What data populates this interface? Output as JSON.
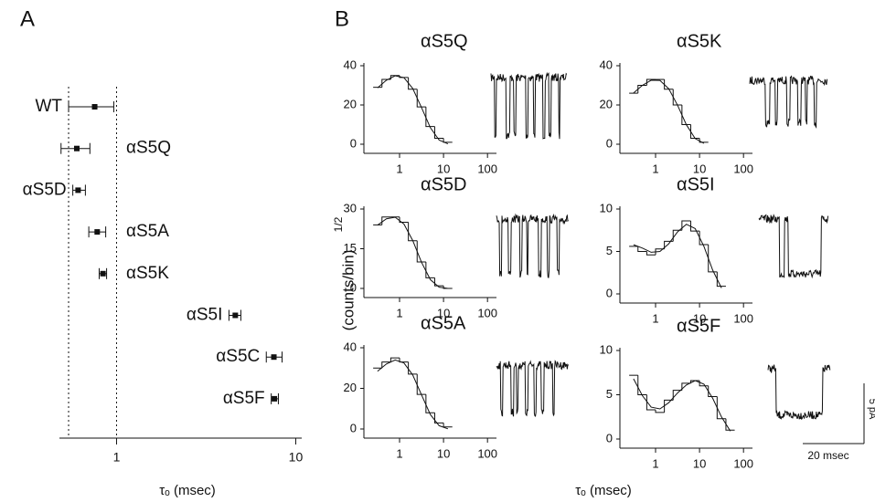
{
  "figure": {
    "panel_b_label": "B",
    "panel_b_x_label": "τₒ (msec)",
    "panel_b_y_label": "(counts/bin)",
    "panel_b_y_label_exponent": "1/2",
    "scale_time": "20 msec",
    "scale_current": "5 pA"
  },
  "chart_data": [
    {
      "type": "errorbar",
      "panel": "A",
      "categories": [
        "WT",
        "αS5Q",
        "αS5D",
        "αS5A",
        "αS5K",
        "αS5I",
        "αS5C",
        "αS5F"
      ],
      "values": [
        0.755,
        0.6,
        0.61,
        0.78,
        0.84,
        4.6,
        7.55,
        7.6
      ],
      "low": [
        0.54,
        0.49,
        0.57,
        0.7,
        0.8,
        4.24,
        6.85,
        7.3
      ],
      "high": [
        0.965,
        0.71,
        0.67,
        0.87,
        0.88,
        4.94,
        8.39,
        8.0
      ],
      "x_label": "τₒ (msec)",
      "log_x": true,
      "xlim": [
        0.48,
        10.8
      ],
      "xticks": [
        1,
        10
      ],
      "reference_lines": [
        0.54,
        1
      ]
    },
    {
      "type": "histogram",
      "title": "αS5Q",
      "log_x": true,
      "xlim": [
        0.17,
        160
      ],
      "xticks": [
        1,
        10,
        100
      ],
      "ylim": [
        0,
        40
      ],
      "yticks": [
        0,
        20,
        40
      ],
      "bins": [
        0.251,
        0.398,
        0.631,
        1,
        1.585,
        2.512,
        3.981,
        6.31,
        10,
        15.85
      ],
      "values": [
        29,
        33,
        35,
        34,
        28,
        19,
        9,
        3,
        1
      ],
      "fit": {
        "x": [
          0.316,
          0.501,
          0.794,
          1.259,
          1.995,
          3.162,
          5.012,
          7.943,
          12.59
        ],
        "values": [
          28.7,
          32.6,
          34.9,
          33.9,
          28.4,
          18.7,
          8.4,
          2.1,
          0.2
        ]
      }
    },
    {
      "type": "histogram",
      "title": "αS5K",
      "log_x": true,
      "xlim": [
        0.17,
        160
      ],
      "xticks": [
        1,
        10,
        100
      ],
      "ylim": [
        0,
        40
      ],
      "yticks": [
        0,
        20,
        40
      ],
      "bins": [
        0.251,
        0.398,
        0.631,
        1,
        1.585,
        2.512,
        3.981,
        6.31,
        10,
        15.85
      ],
      "values": [
        26,
        30,
        33,
        33,
        28,
        20,
        10,
        3,
        1
      ],
      "fit": {
        "x": [
          0.316,
          0.501,
          0.794,
          1.259,
          1.995,
          3.162,
          5.012,
          7.943,
          12.59
        ],
        "values": [
          26.1,
          30.0,
          32.6,
          32.5,
          28.3,
          19.9,
          9.9,
          2.9,
          0.4
        ]
      }
    },
    {
      "type": "histogram",
      "title": "αS5D",
      "log_x": true,
      "xlim": [
        0.17,
        160
      ],
      "xticks": [
        1,
        10,
        100
      ],
      "ylim": [
        0,
        30
      ],
      "yticks": [
        0,
        15,
        30
      ],
      "bins": [
        0.251,
        0.398,
        0.631,
        1,
        1.585,
        2.512,
        3.981,
        6.31,
        10,
        15.85
      ],
      "values": [
        24,
        27,
        27,
        25,
        18,
        10,
        4,
        1,
        0
      ],
      "fit": {
        "x": [
          0.316,
          0.501,
          0.794,
          1.259,
          1.995,
          3.162,
          5.012,
          7.943,
          12.59
        ],
        "values": [
          23.9,
          26.3,
          26.9,
          24.3,
          18.1,
          9.9,
          3.3,
          0.5,
          0.0
        ]
      }
    },
    {
      "type": "histogram",
      "title": "αS5I",
      "log_x": true,
      "xlim": [
        0.17,
        160
      ],
      "xticks": [
        1,
        10,
        100
      ],
      "ylim": [
        0,
        10
      ],
      "yticks": [
        0,
        5,
        10
      ],
      "bins": [
        0.251,
        0.398,
        0.631,
        1,
        1.585,
        2.512,
        3.981,
        6.31,
        10,
        15.85,
        25.12,
        39.81
      ],
      "values": [
        5.6,
        5.0,
        4.6,
        5.3,
        6.2,
        7.5,
        8.6,
        7.4,
        5.8,
        2.6,
        0.9
      ],
      "fit": {
        "x": [
          0.316,
          0.501,
          0.794,
          1.259,
          1.995,
          3.162,
          5.012,
          7.943,
          12.59,
          19.95,
          31.62
        ],
        "values": [
          5.8,
          5.4,
          4.9,
          5.0,
          5.9,
          7.3,
          8.2,
          7.7,
          5.6,
          2.8,
          0.7
        ]
      }
    },
    {
      "type": "histogram",
      "title": "αS5A",
      "log_x": true,
      "xlim": [
        0.17,
        160
      ],
      "xticks": [
        1,
        10,
        100
      ],
      "ylim": [
        0,
        40
      ],
      "yticks": [
        0,
        20,
        40
      ],
      "bins": [
        0.251,
        0.398,
        0.631,
        1,
        1.585,
        2.512,
        3.981,
        6.31,
        10,
        15.85
      ],
      "values": [
        30,
        33,
        35,
        33,
        27,
        17,
        8,
        3,
        1
      ],
      "fit": {
        "x": [
          0.316,
          0.501,
          0.794,
          1.259,
          1.995,
          3.162,
          5.012,
          7.943,
          12.59
        ],
        "values": [
          28.4,
          32.0,
          34.0,
          32.5,
          26.6,
          16.8,
          7.1,
          1.6,
          0.1
        ]
      }
    },
    {
      "type": "histogram",
      "title": "αS5F",
      "log_x": true,
      "xlim": [
        0.17,
        160
      ],
      "xticks": [
        1,
        10,
        100
      ],
      "ylim": [
        0,
        10
      ],
      "yticks": [
        0,
        5,
        10
      ],
      "bins": [
        0.251,
        0.398,
        0.631,
        1,
        1.585,
        2.512,
        3.981,
        6.31,
        10,
        15.85,
        25.12,
        39.81,
        63.1
      ],
      "values": [
        7.2,
        5.0,
        3.3,
        3.0,
        4.4,
        5.5,
        6.3,
        6.6,
        6.0,
        4.8,
        2.3,
        1.0
      ],
      "fit": {
        "x": [
          0.316,
          0.501,
          0.794,
          1.259,
          1.995,
          3.162,
          5.012,
          7.943,
          12.59,
          19.95,
          31.62,
          50.12
        ],
        "values": [
          6.8,
          4.9,
          3.6,
          3.4,
          4.1,
          5.2,
          6.1,
          6.6,
          6.2,
          4.6,
          2.5,
          0.9
        ]
      }
    }
  ]
}
